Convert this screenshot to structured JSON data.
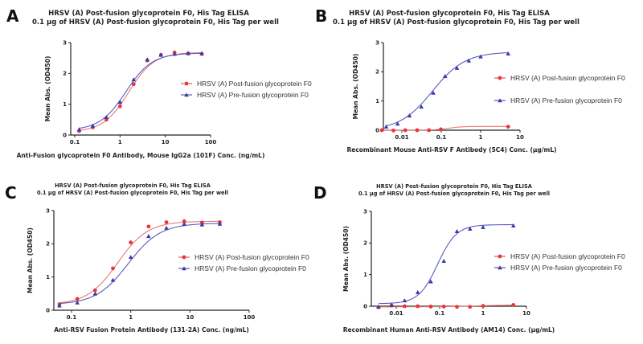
{
  "colors": {
    "post": "#e8363a",
    "pre": "#3a3aa8",
    "post_curve": "#e87878",
    "pre_curve": "#5a5ac0",
    "axis": "#222222"
  },
  "chart_data": [
    {
      "id": "A",
      "type": "scatter",
      "panel_label": "A",
      "title": "HRSV (A) Post-fusion glycoprotein F0, His Tag ELISA",
      "subtitle": "0.1 µg of HRSV (A) Post-fusion glycoprotein F0, His Tag per well",
      "xlabel": "Anti-Fusion glycoprotein F0 Antibody, Mouse IgG2a (101F) Conc. (ng/mL)",
      "ylabel": "Mean Abs. (OD450)",
      "xscale": "log",
      "xlim": [
        0.1,
        100
      ],
      "ylim": [
        0,
        3
      ],
      "xticks": [
        0.1,
        1,
        10,
        100
      ],
      "xtick_labels": [
        "0.1",
        "1",
        "10",
        "100"
      ],
      "yticks": [
        0,
        1,
        2,
        3
      ],
      "ytick_labels": [
        "0",
        "1",
        "2",
        "3"
      ],
      "legend_position": "right",
      "series": [
        {
          "name": "HRSV (A) Post-fusion glycoprotein F0",
          "marker": "circle",
          "color_key": "post",
          "x": [
            0.125,
            0.25,
            0.5,
            1,
            2,
            4,
            8,
            16,
            32,
            64
          ],
          "y": [
            0.13,
            0.25,
            0.5,
            0.93,
            1.65,
            2.42,
            2.6,
            2.68,
            2.65,
            2.63
          ],
          "fit": {
            "bottom": 0.1,
            "top": 2.68,
            "ec50": 1.55,
            "hill": 1.55
          }
        },
        {
          "name": "HRSV (A) Pre-fusion glycoprotein F0",
          "marker": "triangle",
          "color_key": "pre",
          "x": [
            0.125,
            0.25,
            0.5,
            1,
            2,
            4,
            8,
            16,
            32,
            64
          ],
          "y": [
            0.18,
            0.3,
            0.58,
            1.07,
            1.8,
            2.45,
            2.6,
            2.63,
            2.65,
            2.65
          ],
          "fit": {
            "bottom": 0.15,
            "top": 2.66,
            "ec50": 1.35,
            "hill": 1.5
          }
        }
      ]
    },
    {
      "id": "B",
      "type": "scatter",
      "panel_label": "B",
      "title": "HRSV (A) Post-fusion glycoprotein F0, His Tag ELISA",
      "subtitle": "0.1 µg of HRSV (A) Post-fusion glycoprotein F0, His Tag per well",
      "xlabel": "Recombinant Mouse Anti-RSV F Antibody (5C4) Conc. (µg/mL)",
      "ylabel": "Mean Abs. (OD450)",
      "xscale": "log",
      "xlim": [
        0.0022,
        10
      ],
      "ylim": [
        0,
        3
      ],
      "xticks": [
        0.01,
        0.1,
        1,
        10
      ],
      "xtick_labels": [
        "0.01",
        "0.1",
        "1",
        "10"
      ],
      "yticks": [
        0,
        1,
        2,
        3
      ],
      "ytick_labels": [
        "0",
        "1",
        "2",
        "3"
      ],
      "legend_position": "right",
      "series": [
        {
          "name": "HRSV (A) Post-fusion glycoprotein F0",
          "marker": "circle",
          "color_key": "post",
          "x": [
            0.0031,
            0.0061,
            0.0122,
            0.0244,
            0.0488,
            0.0977,
            5
          ],
          "y": [
            0.0,
            -0.01,
            0.0,
            0.0,
            0.0,
            0.03,
            0.12
          ],
          "fit": {
            "bottom": 0.0,
            "top": 0.13,
            "ec50": 0.15,
            "hill": 2.5
          }
        },
        {
          "name": "HRSV (A) Pre-fusion glycoprotein F0",
          "marker": "triangle",
          "color_key": "pre",
          "x": [
            0.004,
            0.0078,
            0.0156,
            0.03125,
            0.0625,
            0.125,
            0.25,
            0.5,
            1,
            5
          ],
          "y": [
            0.12,
            0.22,
            0.5,
            0.8,
            1.28,
            1.85,
            2.13,
            2.38,
            2.52,
            2.62
          ],
          "fit": {
            "bottom": 0.0,
            "top": 2.68,
            "ec50": 0.06,
            "hill": 1.05
          }
        }
      ]
    },
    {
      "id": "C",
      "type": "scatter",
      "panel_label": "C",
      "title": "HRSV (A) Post-fusion glycoprotein F0, His Tag ELISA",
      "subtitle": "0.1 µg of HRSV (A) Post-fusion glycoprotein F0, His Tag per well",
      "xlabel": "Anti-RSV Fusion Protein Antibody (131-2A) Conc. (ng/mL)",
      "ylabel": "Mean Abs. (OD450)",
      "xscale": "log",
      "xlim": [
        0.05,
        100
      ],
      "ylim": [
        0,
        3
      ],
      "xticks": [
        0.1,
        1,
        10,
        100
      ],
      "xtick_labels": [
        "0.1",
        "1",
        "10",
        "100"
      ],
      "yticks": [
        0,
        1,
        2,
        3
      ],
      "ytick_labels": [
        "0",
        "1",
        "2",
        "3"
      ],
      "legend_position": "right",
      "series": [
        {
          "name": "HRSV (A) Post-fusion glycoprotein F0",
          "marker": "circle",
          "color_key": "post",
          "x": [
            0.0625,
            0.125,
            0.25,
            0.5,
            1,
            2,
            4,
            8,
            16,
            32
          ],
          "y": [
            0.18,
            0.34,
            0.6,
            1.26,
            2.04,
            2.52,
            2.65,
            2.68,
            2.64,
            2.65
          ],
          "fit": {
            "bottom": 0.17,
            "top": 2.68,
            "ec50": 0.6,
            "hill": 1.7
          }
        },
        {
          "name": "HRSV (A) Pre-fusion glycoprotein F0",
          "marker": "triangle",
          "color_key": "pre",
          "x": [
            0.0625,
            0.125,
            0.25,
            0.5,
            1,
            2,
            4,
            8,
            16,
            32
          ],
          "y": [
            0.14,
            0.23,
            0.5,
            0.91,
            1.6,
            2.23,
            2.48,
            2.6,
            2.58,
            2.6
          ],
          "fit": {
            "bottom": 0.17,
            "top": 2.62,
            "ec50": 0.9,
            "hill": 1.6
          }
        }
      ]
    },
    {
      "id": "D",
      "type": "scatter",
      "panel_label": "D",
      "title": "HRSV (A) Post-fusion glycoprotein F0, His Tag ELISA",
      "subtitle": "0.1 µg of HRSV (A) Post-fusion glycoprotein F0, His Tag per well",
      "xlabel": "Recombinant Human Anti-RSV Antibody (AM14) Conc. (µg/mL)",
      "ylabel": "Mean Abs. (OD450)",
      "xscale": "log",
      "xlim": [
        0.0025,
        10
      ],
      "ylim": [
        0,
        3
      ],
      "xticks": [
        0.01,
        0.1,
        1,
        10
      ],
      "xtick_labels": [
        "0.01",
        "0.1",
        "1",
        "10"
      ],
      "yticks": [
        0,
        1,
        2,
        3
      ],
      "ytick_labels": [
        "0",
        "1",
        "2",
        "3"
      ],
      "legend_position": "right",
      "series": [
        {
          "name": "HRSV (A) Post-fusion glycoprotein F0",
          "marker": "circle",
          "color_key": "post",
          "x": [
            0.0039,
            0.0078,
            0.0156,
            0.03125,
            0.0625,
            0.125,
            0.25,
            0.5,
            1,
            5
          ],
          "y": [
            -0.03,
            0.02,
            0.0,
            0.0,
            -0.01,
            -0.01,
            -0.02,
            -0.02,
            0.01,
            0.04
          ],
          "fit": {
            "bottom": -0.02,
            "top": 0.05,
            "ec50": 1.0,
            "hill": 1.0
          }
        },
        {
          "name": "HRSV (A) Pre-fusion glycoprotein F0",
          "marker": "triangle",
          "color_key": "pre",
          "x": [
            0.0039,
            0.0078,
            0.0156,
            0.03125,
            0.0625,
            0.125,
            0.25,
            0.5,
            1,
            5
          ],
          "y": [
            -0.02,
            0.04,
            0.18,
            0.44,
            0.78,
            1.43,
            2.37,
            2.45,
            2.5,
            2.55
          ],
          "fit": {
            "bottom": 0.08,
            "top": 2.58,
            "ec50": 0.09,
            "hill": 2.0
          }
        }
      ]
    }
  ]
}
